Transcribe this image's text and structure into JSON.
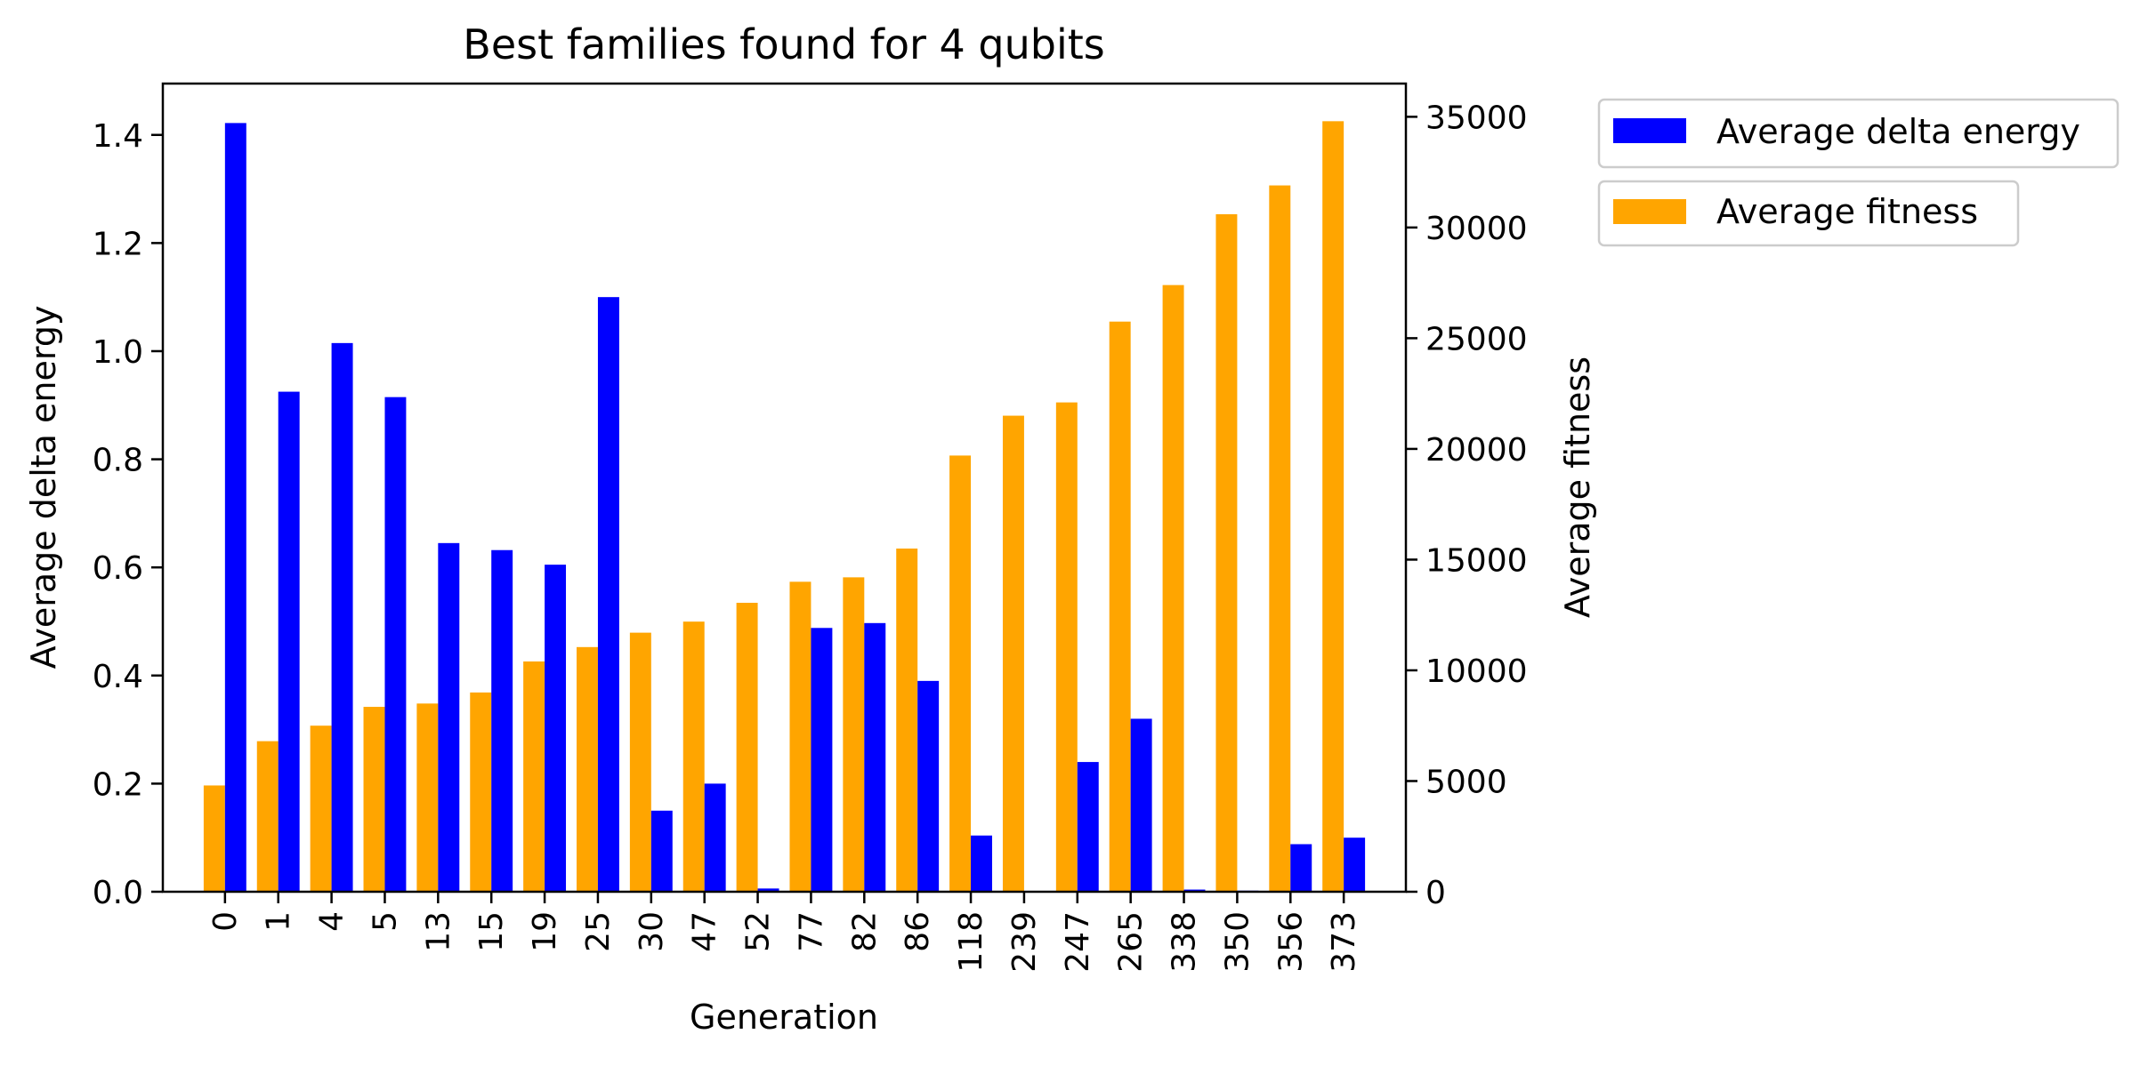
{
  "chart_data": {
    "type": "bar",
    "title": "Best families found for 4 qubits",
    "xlabel": "Generation",
    "ylabel_left": "Average delta energy",
    "ylabel_right": "Average fitness",
    "categories": [
      "0",
      "1",
      "4",
      "5",
      "13",
      "15",
      "19",
      "25",
      "30",
      "47",
      "52",
      "77",
      "82",
      "86",
      "118",
      "239",
      "247",
      "265",
      "338",
      "350",
      "356",
      "373"
    ],
    "series": [
      {
        "name": "Average delta energy",
        "axis": "left",
        "color": "#0000ff",
        "values": [
          1.422,
          0.925,
          1.015,
          0.915,
          0.645,
          0.632,
          0.605,
          1.1,
          0.15,
          0.2,
          0.006,
          0.488,
          0.497,
          0.39,
          0.104,
          0.0,
          0.24,
          0.32,
          0.004,
          0.002,
          0.088,
          0.1
        ]
      },
      {
        "name": "Average fitness",
        "axis": "right",
        "color": "#ffa500",
        "values": [
          4800,
          6800,
          7500,
          8350,
          8500,
          9000,
          10400,
          11050,
          11700,
          12200,
          13050,
          14000,
          14200,
          15500,
          19700,
          21500,
          22100,
          25750,
          27400,
          30600,
          31900,
          34800
        ]
      }
    ],
    "ylim_left": [
      0,
      1.495
    ],
    "ylim_right": [
      0,
      36500
    ],
    "yticks_left": [
      "0.0",
      "0.2",
      "0.4",
      "0.6",
      "0.8",
      "1.0",
      "1.2",
      "1.4"
    ],
    "yticks_right": [
      "0",
      "5000",
      "10000",
      "15000",
      "20000",
      "25000",
      "30000",
      "35000"
    ],
    "grid": false,
    "legend_position": "outside-right"
  }
}
